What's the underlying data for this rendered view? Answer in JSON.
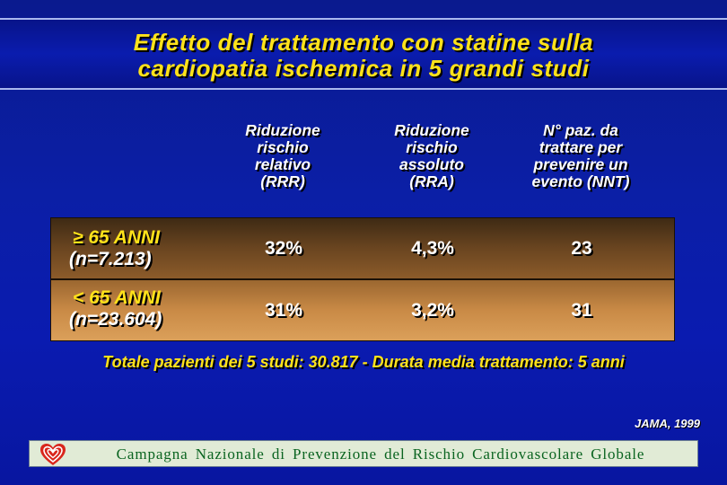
{
  "title": {
    "line1": "Effetto del trattamento con statine sulla",
    "line2": "cardiopatia ischemica in 5 grandi studi"
  },
  "table": {
    "columns": [
      {
        "lines": [
          "Riduzione",
          "rischio",
          "relativo",
          "(RRR)"
        ]
      },
      {
        "lines": [
          "Riduzione",
          "rischio",
          "assoluto",
          "(RRA)"
        ]
      },
      {
        "lines": [
          "N° paz. da",
          "trattare per",
          "prevenire un",
          "evento (NNT)"
        ]
      }
    ],
    "rows": [
      {
        "group": "≥ 65 ANNI",
        "n": "(n=7.213)",
        "rrr": "32%",
        "rra": "4,3%",
        "nnt": "23"
      },
      {
        "group": "< 65 ANNI",
        "n": "(n=23.604)",
        "rrr": "31%",
        "rra": "3,2%",
        "nnt": "31"
      }
    ]
  },
  "summary": "Totale pazienti dei 5 studi: 30.817 - Durata media trattamento: 5 anni",
  "source": "JAMA, 1999",
  "campaign": {
    "text": "Campagna Nazionale di Prevenzione del Rischio Cardiovascolare Globale",
    "logo_icon": "heart-logo-icon",
    "logo_color": "#d9261c"
  },
  "colors": {
    "background": "#0b1fa6",
    "title_text": "#ffe21a",
    "row1_band": "#6a4520",
    "row2_band": "#c98a46",
    "campaign_bar": "#e1ebd6",
    "campaign_text": "#0a6420"
  }
}
